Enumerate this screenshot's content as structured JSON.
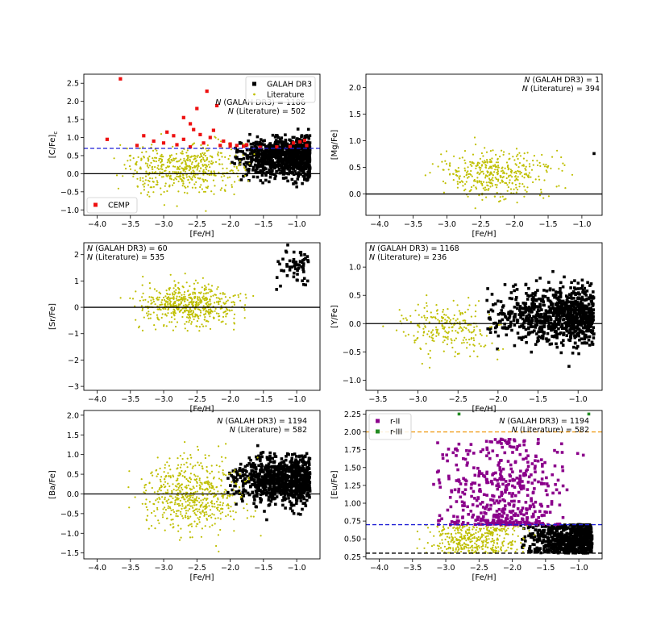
{
  "chart_data": [
    {
      "type": "scatter",
      "xlabel": "[Fe/H]",
      "ylabel": "[C/Fe]",
      "ylabel_sub": "c",
      "xlim": [
        -4.2,
        -0.65
      ],
      "ylim": [
        -1.15,
        2.75
      ],
      "xticks": [
        -4.0,
        -3.5,
        -3.0,
        -2.5,
        -2.0,
        -1.5,
        -1.0
      ],
      "xtick_labels": [
        "−4.0",
        "−3.5",
        "−3.0",
        "−2.5",
        "−2.0",
        "−1.5",
        "−1.0"
      ],
      "yticks": [
        -1.0,
        -0.5,
        0.0,
        0.5,
        1.0,
        1.5,
        2.0,
        2.5
      ],
      "ytick_labels": [
        "−1.0",
        "−0.5",
        "0.0",
        "0.5",
        "1.0",
        "1.5",
        "2.0",
        "2.5"
      ],
      "hlines": [
        {
          "y": 0.0,
          "color": "#000000",
          "style": "solid"
        },
        {
          "y": 0.7,
          "color": "#1f1fd6",
          "style": "dashed"
        }
      ],
      "annotations": [
        "N (GALAH DR3) = 1186",
        "N (Literature) = 502"
      ],
      "legend": {
        "placement": "top-right",
        "entries": [
          {
            "label": "GALAH DR3",
            "color": "#000000",
            "marker": "square"
          },
          {
            "label": "Literature",
            "color": "#bfbf00",
            "marker": "dot"
          }
        ]
      },
      "legend2": {
        "placement": "bottom-left",
        "entries": [
          {
            "label": "CEMP",
            "color": "#ee1111",
            "marker": "square"
          }
        ]
      },
      "series": [
        {
          "name": "GALAH DR3",
          "color": "#000000",
          "marker": "square",
          "xrange": [
            -2.0,
            -0.8
          ],
          "center": 0.45,
          "spread": 0.28,
          "count": 1186
        },
        {
          "name": "Literature",
          "color": "#bfbf00",
          "marker": "dot",
          "xrange": [
            -4.0,
            -1.4
          ],
          "center": 0.15,
          "spread": 0.35,
          "count": 502
        },
        {
          "name": "CEMP",
          "color": "#ee1111",
          "marker": "square",
          "points": [
            [
              -3.65,
              2.62
            ],
            [
              -3.85,
              0.95
            ],
            [
              -3.3,
              1.05
            ],
            [
              -3.15,
              0.9
            ],
            [
              -2.95,
              1.15
            ],
            [
              -2.85,
              1.05
            ],
            [
              -2.7,
              1.55
            ],
            [
              -2.6,
              1.38
            ],
            [
              -2.5,
              1.8
            ],
            [
              -2.45,
              1.08
            ],
            [
              -2.35,
              2.28
            ],
            [
              -2.55,
              1.22
            ],
            [
              -2.7,
              0.95
            ],
            [
              -2.3,
              1.0
            ],
            [
              -2.2,
              1.88
            ],
            [
              -2.25,
              1.2
            ],
            [
              -2.4,
              0.85
            ],
            [
              -2.1,
              0.9
            ],
            [
              -2.0,
              0.82
            ],
            [
              -1.9,
              0.78
            ],
            [
              -1.8,
              0.76
            ],
            [
              -1.75,
              0.8
            ],
            [
              -3.0,
              0.85
            ],
            [
              -3.4,
              0.78
            ],
            [
              -2.8,
              0.8
            ],
            [
              -2.15,
              0.78
            ],
            [
              -1.05,
              0.85
            ],
            [
              -0.95,
              0.88
            ],
            [
              -0.88,
              0.92
            ],
            [
              -0.85,
              0.78
            ],
            [
              -1.1,
              0.75
            ],
            [
              -1.3,
              0.74
            ],
            [
              -1.55,
              0.73
            ],
            [
              -2.0,
              0.76
            ],
            [
              -2.6,
              0.74
            ]
          ]
        }
      ]
    },
    {
      "type": "scatter",
      "xlabel": "[Fe/H]",
      "ylabel": "[Mg/Fe]",
      "xlim": [
        -4.2,
        -0.7
      ],
      "ylim": [
        -0.4,
        2.25
      ],
      "xticks": [
        -4.0,
        -3.5,
        -3.0,
        -2.5,
        -2.0,
        -1.5,
        -1.0
      ],
      "xtick_labels": [
        "−4.0",
        "−3.5",
        "−3.0",
        "−2.5",
        "−2.0",
        "−1.5",
        "−1.0"
      ],
      "yticks": [
        0.0,
        0.5,
        1.0,
        1.5,
        2.0
      ],
      "ytick_labels": [
        "0.0",
        "0.5",
        "1.0",
        "1.5",
        "2.0"
      ],
      "hlines": [
        {
          "y": 0.0,
          "color": "#000000",
          "style": "solid"
        }
      ],
      "annotations": [
        "N (GALAH DR3) = 1",
        "N (Literature) = 394"
      ],
      "series": [
        {
          "name": "GALAH DR3",
          "color": "#000000",
          "marker": "square",
          "points": [
            [
              -0.82,
              0.76
            ]
          ]
        },
        {
          "name": "Literature",
          "color": "#bfbf00",
          "marker": "dot",
          "xrange": [
            -3.6,
            -1.0
          ],
          "center": 0.38,
          "spread": 0.22,
          "count": 394
        }
      ]
    },
    {
      "type": "scatter",
      "xlabel": "[Fe/H]",
      "ylabel": "[Sr/Fe]",
      "xlim": [
        -4.2,
        -0.65
      ],
      "ylim": [
        -3.15,
        2.45
      ],
      "xticks": [
        -4.0,
        -3.5,
        -3.0,
        -2.5,
        -2.0,
        -1.5,
        -1.0
      ],
      "xtick_labels": [
        "−4.0",
        "−3.5",
        "−3.0",
        "−2.5",
        "−2.0",
        "−1.5",
        "−1.0"
      ],
      "yticks": [
        -3,
        -2,
        -1,
        0,
        1,
        2
      ],
      "ytick_labels": [
        "−3",
        "−2",
        "−1",
        "0",
        "1",
        "2"
      ],
      "hlines": [
        {
          "y": 0.0,
          "color": "#000000",
          "style": "solid"
        }
      ],
      "annotations": [
        "N (GALAH DR3) = 60",
        "N (Literature) = 535"
      ],
      "series": [
        {
          "name": "GALAH DR3",
          "color": "#000000",
          "marker": "square",
          "xrange": [
            -1.35,
            -0.82
          ],
          "center": 1.45,
          "spread": 0.35,
          "count": 60
        },
        {
          "name": "Literature",
          "color": "#bfbf00",
          "marker": "dot",
          "xrange": [
            -3.7,
            -1.6
          ],
          "center": 0.1,
          "spread": 0.4,
          "count": 535
        }
      ]
    },
    {
      "type": "scatter",
      "xlabel": "[Fe/H]",
      "ylabel": "[Y/Fe]",
      "xlim": [
        -3.65,
        -0.7
      ],
      "ylim": [
        -1.18,
        1.43
      ],
      "xticks": [
        -3.5,
        -3.0,
        -2.5,
        -2.0,
        -1.5,
        -1.0
      ],
      "xtick_labels": [
        "−3.5",
        "−3.0",
        "−2.5",
        "−2.0",
        "−1.5",
        "−1.0"
      ],
      "yticks": [
        -1.0,
        -0.5,
        0.0,
        0.5,
        1.0
      ],
      "ytick_labels": [
        "−1.0",
        "−0.5",
        "0.0",
        "0.5",
        "1.0"
      ],
      "hlines": [
        {
          "y": 0.0,
          "color": "#000000",
          "style": "solid"
        }
      ],
      "annotations": [
        "N (GALAH DR3) = 1168",
        "N (Literature) = 236"
      ],
      "series": [
        {
          "name": "GALAH DR3",
          "color": "#000000",
          "marker": "square",
          "xrange": [
            -2.2,
            -0.8
          ],
          "center": 0.15,
          "spread": 0.25,
          "count": 1168
        },
        {
          "name": "Literature",
          "color": "#bfbf00",
          "marker": "dot",
          "xrange": [
            -3.55,
            -1.7
          ],
          "center": -0.1,
          "spread": 0.25,
          "count": 236
        }
      ]
    },
    {
      "type": "scatter",
      "xlabel": "[Fe/H]",
      "ylabel": "[Ba/Fe]",
      "xlim": [
        -4.2,
        -0.65
      ],
      "ylim": [
        -1.65,
        2.12
      ],
      "xticks": [
        -4.0,
        -3.5,
        -3.0,
        -2.5,
        -2.0,
        -1.5,
        -1.0
      ],
      "xtick_labels": [
        "−4.0",
        "−3.5",
        "−3.0",
        "−2.5",
        "−2.0",
        "−1.5",
        "−1.0"
      ],
      "yticks": [
        -1.5,
        -1.0,
        -0.5,
        0.0,
        0.5,
        1.0,
        1.5,
        2.0
      ],
      "ytick_labels": [
        "−1.5",
        "−1.0",
        "−0.5",
        "0.0",
        "0.5",
        "1.0",
        "1.5",
        "2.0"
      ],
      "hlines": [
        {
          "y": 0.0,
          "color": "#000000",
          "style": "solid"
        }
      ],
      "annotations": [
        "N (GALAH DR3) = 1194",
        "N (Literature) = 582"
      ],
      "series": [
        {
          "name": "GALAH DR3",
          "color": "#000000",
          "marker": "square",
          "xrange": [
            -2.1,
            -0.8
          ],
          "center": 0.35,
          "spread": 0.3,
          "count": 1194
        },
        {
          "name": "Literature",
          "color": "#bfbf00",
          "marker": "dot",
          "xrange": [
            -3.7,
            -1.4
          ],
          "center": 0.0,
          "spread": 0.45,
          "count": 582
        }
      ]
    },
    {
      "type": "scatter",
      "xlabel": "[Fe/H]",
      "ylabel": "[Eu/Fe]",
      "xlim": [
        -4.2,
        -0.65
      ],
      "ylim": [
        0.22,
        2.3
      ],
      "xticks": [
        -4.0,
        -3.5,
        -3.0,
        -2.5,
        -2.0,
        -1.5,
        -1.0
      ],
      "xtick_labels": [
        "−4.0",
        "−3.5",
        "−3.0",
        "−2.5",
        "−2.0",
        "−1.5",
        "−1.0"
      ],
      "yticks": [
        0.25,
        0.5,
        0.75,
        1.0,
        1.25,
        1.5,
        1.75,
        2.0,
        2.25
      ],
      "ytick_labels": [
        "0.25",
        "0.50",
        "0.75",
        "1.00",
        "1.25",
        "1.50",
        "1.75",
        "2.00",
        "2.25"
      ],
      "hlines": [
        {
          "y": 0.3,
          "color": "#000000",
          "style": "dashed"
        },
        {
          "y": 0.7,
          "color": "#1f1fd6",
          "style": "dashed"
        },
        {
          "y": 2.0,
          "color": "#f0a020",
          "style": "dashed"
        }
      ],
      "annotations": [
        "N (GALAH DR3) = 1194",
        "N (Literature) = 582"
      ],
      "legend": {
        "placement": "top-left",
        "entries": [
          {
            "label": "r-II",
            "color": "#8b008b",
            "marker": "square"
          },
          {
            "label": "r-III",
            "color": "#228b22",
            "marker": "square"
          }
        ]
      },
      "series": [
        {
          "name": "GALAH DR3",
          "color": "#000000",
          "marker": "square",
          "xrange": [
            -1.9,
            -0.8
          ],
          "yrange": [
            0.3,
            0.7
          ],
          "count": 700
        },
        {
          "name": "Literature",
          "color": "#bfbf00",
          "marker": "dot",
          "xrange": [
            -3.6,
            -1.5
          ],
          "yrange": [
            0.3,
            0.7
          ],
          "count": 400
        },
        {
          "name": "r-II",
          "color": "#8b008b",
          "marker": "square",
          "xrange": [
            -3.5,
            -0.8
          ],
          "yrange": [
            0.7,
            1.9
          ],
          "count": 500
        },
        {
          "name": "r-III",
          "color": "#228b22",
          "marker": "square",
          "points": [
            [
              -2.8,
              2.25
            ],
            [
              -0.85,
              2.25
            ]
          ]
        }
      ]
    }
  ]
}
